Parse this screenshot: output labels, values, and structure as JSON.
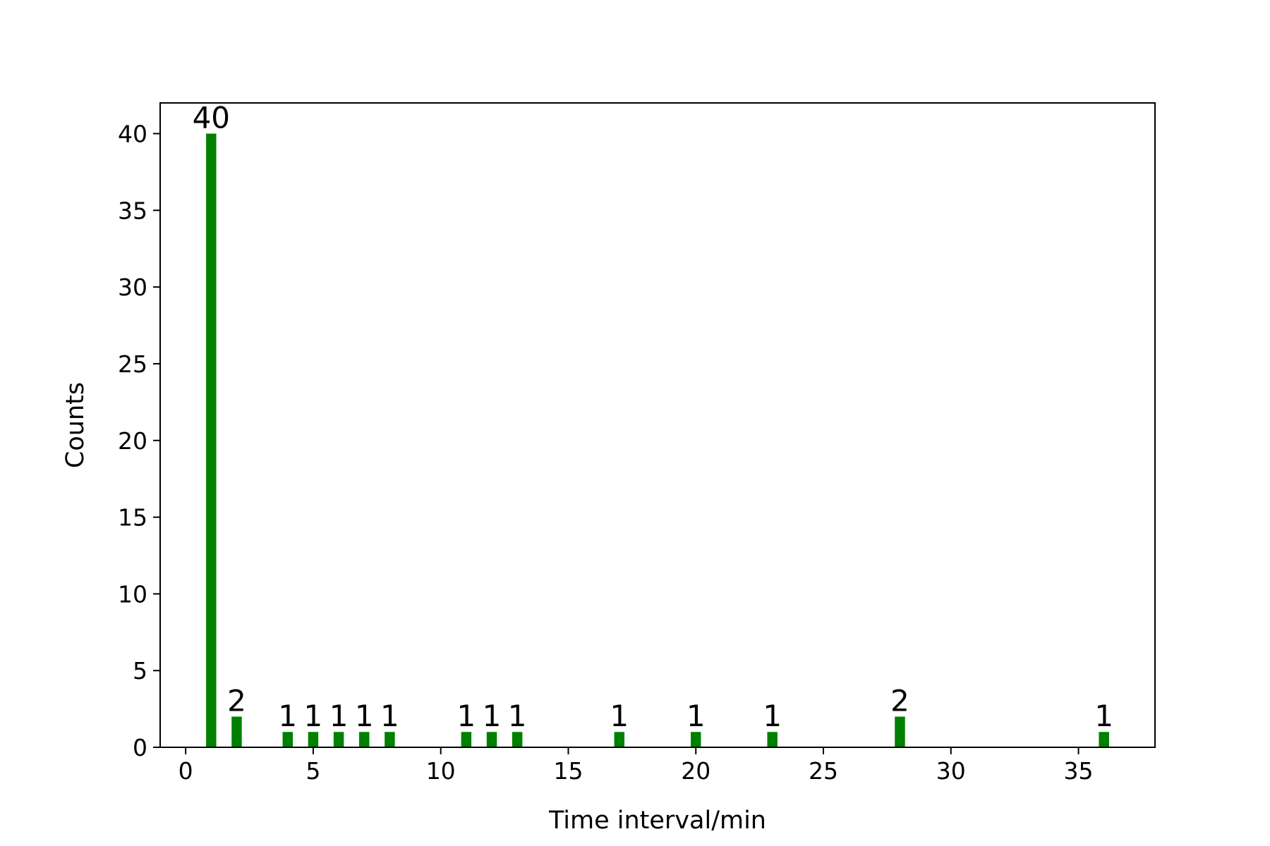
{
  "chart_data": {
    "type": "bar",
    "title": "",
    "xlabel": "Time interval/min",
    "ylabel": "Counts",
    "x": [
      1,
      2,
      4,
      5,
      6,
      7,
      8,
      11,
      12,
      13,
      17,
      20,
      23,
      28,
      36
    ],
    "values": [
      40,
      2,
      1,
      1,
      1,
      1,
      1,
      1,
      1,
      1,
      1,
      1,
      1,
      2,
      1
    ],
    "data_labels": [
      "40",
      "2",
      "1",
      "1",
      "1",
      "1",
      "1",
      "1",
      "1",
      "1",
      "1",
      "1",
      "1",
      "2",
      "1"
    ],
    "xlim": [
      -1,
      38
    ],
    "ylim": [
      0,
      42
    ],
    "xticks": [
      0,
      5,
      10,
      15,
      20,
      25,
      30,
      35
    ],
    "xtick_labels": [
      "0",
      "5",
      "10",
      "15",
      "20",
      "25",
      "30",
      "35"
    ],
    "yticks": [
      0,
      5,
      10,
      15,
      20,
      25,
      30,
      35,
      40
    ],
    "ytick_labels": [
      "0",
      "5",
      "10",
      "15",
      "20",
      "25",
      "30",
      "35",
      "40"
    ],
    "bar_color": "#008000",
    "grid": false,
    "legend": false
  }
}
